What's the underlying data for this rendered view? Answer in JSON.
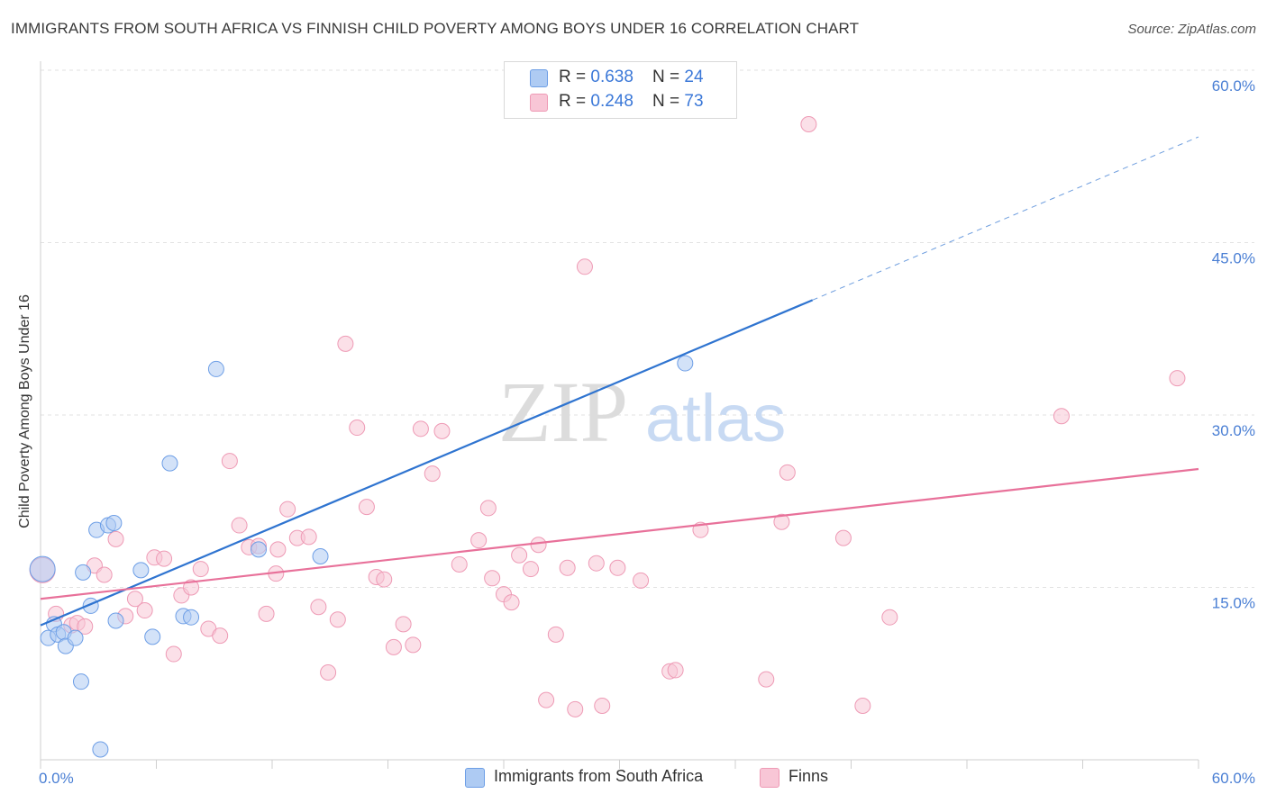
{
  "title": "IMMIGRANTS FROM SOUTH AFRICA VS FINNISH CHILD POVERTY AMONG BOYS UNDER 16 CORRELATION CHART",
  "source": "Source: ZipAtlas.com",
  "watermark": {
    "zip": "ZIP",
    "atlas": "atlas"
  },
  "legend_top": {
    "rows": [
      {
        "r_label": "R = ",
        "r_value": "0.638",
        "n_label": "N = ",
        "n_value": "24",
        "color": "#aecbf3"
      },
      {
        "r_label": "R = ",
        "r_value": "0.248",
        "n_label": "N = ",
        "n_value": "73",
        "color": "#f8c6d6"
      }
    ]
  },
  "legend_bottom": [
    {
      "label": "Immigrants from South Africa",
      "color": "#aecbf3"
    },
    {
      "label": "Finns",
      "color": "#f8c6d6"
    }
  ],
  "chart_data": {
    "type": "scatter",
    "title": "IMMIGRANTS FROM SOUTH AFRICA VS FINNISH CHILD POVERTY AMONG BOYS UNDER 16 CORRELATION CHART",
    "xlabel": "",
    "ylabel": "Child Poverty Among Boys Under 16",
    "xlim": [
      0,
      60
    ],
    "ylim": [
      0,
      60
    ],
    "x_tick_labels": [
      {
        "value": 0,
        "label": "0.0%"
      },
      {
        "value": 60,
        "label": "60.0%"
      }
    ],
    "y_tick_labels": [
      {
        "value": 15,
        "label": "15.0%"
      },
      {
        "value": 30,
        "label": "30.0%"
      },
      {
        "value": 45,
        "label": "45.0%"
      },
      {
        "value": 60,
        "label": "60.0%"
      }
    ],
    "grid": true,
    "legend_placement": "top-center",
    "series": [
      {
        "name": "Immigrants from South Africa",
        "color": "#aecbf3",
        "stroke": "#6d9ee6",
        "line_color": "#2f74d0",
        "trend": {
          "x0": 0,
          "y0": 11.7,
          "x1": 40,
          "y1": 40.0,
          "dashed_to_x": 60,
          "dashed_to_y": 54.2
        },
        "points": [
          [
            0.1,
            16.6
          ],
          [
            0.4,
            10.6
          ],
          [
            0.7,
            11.8
          ],
          [
            0.9,
            10.9
          ],
          [
            1.2,
            11.1
          ],
          [
            1.3,
            9.9
          ],
          [
            1.8,
            10.6
          ],
          [
            2.2,
            16.3
          ],
          [
            2.1,
            6.8
          ],
          [
            2.6,
            13.4
          ],
          [
            2.9,
            20.0
          ],
          [
            3.5,
            20.4
          ],
          [
            3.8,
            20.6
          ],
          [
            3.1,
            0.9
          ],
          [
            3.9,
            12.1
          ],
          [
            5.2,
            16.5
          ],
          [
            5.8,
            10.7
          ],
          [
            6.7,
            25.8
          ],
          [
            7.4,
            12.5
          ],
          [
            7.8,
            12.4
          ],
          [
            9.1,
            34.0
          ],
          [
            11.3,
            18.3
          ],
          [
            14.5,
            17.7
          ],
          [
            33.4,
            34.5
          ]
        ]
      },
      {
        "name": "Finns",
        "color": "#f8c6d6",
        "stroke": "#ee9ab5",
        "line_color": "#e8719a",
        "trend": {
          "x0": 0,
          "y0": 14.0,
          "x1": 60,
          "y1": 25.3
        },
        "points": [
          [
            0.1,
            16.5
          ],
          [
            0.8,
            12.7
          ],
          [
            1.6,
            11.7
          ],
          [
            1.9,
            11.9
          ],
          [
            2.3,
            11.6
          ],
          [
            2.8,
            16.9
          ],
          [
            3.3,
            16.1
          ],
          [
            3.9,
            19.2
          ],
          [
            4.4,
            12.5
          ],
          [
            4.9,
            14.0
          ],
          [
            5.4,
            13.0
          ],
          [
            5.9,
            17.6
          ],
          [
            6.4,
            17.5
          ],
          [
            6.9,
            9.2
          ],
          [
            7.3,
            14.3
          ],
          [
            7.8,
            15.0
          ],
          [
            8.3,
            16.6
          ],
          [
            8.7,
            11.4
          ],
          [
            9.3,
            10.8
          ],
          [
            9.8,
            26.0
          ],
          [
            10.3,
            20.4
          ],
          [
            10.8,
            18.5
          ],
          [
            11.3,
            18.6
          ],
          [
            11.7,
            12.7
          ],
          [
            12.2,
            16.2
          ],
          [
            12.3,
            18.3
          ],
          [
            12.8,
            21.8
          ],
          [
            13.3,
            19.3
          ],
          [
            13.9,
            19.4
          ],
          [
            14.4,
            13.3
          ],
          [
            14.9,
            7.6
          ],
          [
            15.4,
            12.2
          ],
          [
            15.8,
            36.2
          ],
          [
            16.4,
            28.9
          ],
          [
            16.9,
            22.0
          ],
          [
            17.4,
            15.9
          ],
          [
            17.8,
            15.7
          ],
          [
            18.3,
            9.8
          ],
          [
            18.8,
            11.8
          ],
          [
            19.3,
            10.0
          ],
          [
            19.7,
            28.8
          ],
          [
            20.3,
            24.9
          ],
          [
            20.8,
            28.6
          ],
          [
            21.7,
            17.0
          ],
          [
            22.7,
            19.1
          ],
          [
            23.2,
            21.9
          ],
          [
            23.4,
            15.8
          ],
          [
            24.0,
            14.4
          ],
          [
            24.4,
            13.7
          ],
          [
            24.8,
            17.8
          ],
          [
            25.4,
            16.6
          ],
          [
            25.8,
            18.7
          ],
          [
            26.2,
            5.2
          ],
          [
            26.7,
            10.9
          ],
          [
            27.3,
            16.7
          ],
          [
            27.7,
            4.4
          ],
          [
            28.2,
            42.9
          ],
          [
            28.8,
            17.1
          ],
          [
            29.1,
            4.7
          ],
          [
            29.9,
            16.7
          ],
          [
            31.1,
            15.6
          ],
          [
            32.6,
            7.7
          ],
          [
            32.9,
            7.8
          ],
          [
            34.2,
            20.0
          ],
          [
            37.6,
            7.0
          ],
          [
            38.4,
            20.7
          ],
          [
            38.7,
            25.0
          ],
          [
            39.8,
            55.3
          ],
          [
            41.6,
            19.3
          ],
          [
            42.6,
            4.7
          ],
          [
            44.0,
            12.4
          ],
          [
            52.9,
            29.9
          ],
          [
            58.9,
            33.2
          ]
        ]
      }
    ]
  }
}
